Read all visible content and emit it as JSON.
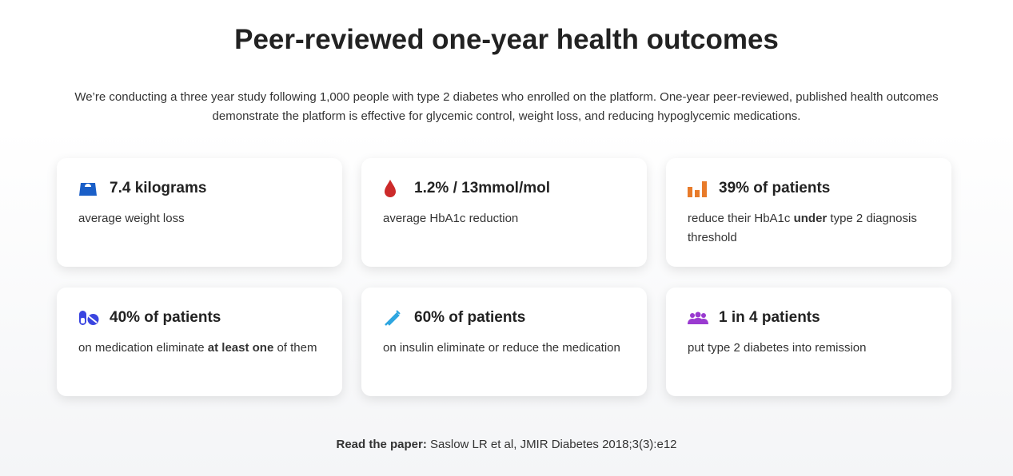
{
  "title": "Peer-reviewed one-year health outcomes",
  "intro": "We’re conducting a three year study following 1,000 people with type 2 diabetes who enrolled on the platform. One-year peer-reviewed, published health outcomes demonstrate the platform is effective for glycemic control, weight loss, and reducing hypoglycemic medications.",
  "cards": [
    {
      "icon": "scale-icon",
      "color": "#1a5fc8",
      "title": "7.4 kilograms",
      "desc": [
        {
          "t": "average weight loss"
        }
      ]
    },
    {
      "icon": "blood-drop-icon",
      "color": "#cc2a2a",
      "title": "1.2% / 13mmol/mol",
      "desc": [
        {
          "t": "average HbA1c reduction"
        }
      ]
    },
    {
      "icon": "bar-chart-icon",
      "color": "#e87b2a",
      "title": "39% of patients",
      "desc": [
        {
          "t": "reduce their HbA1c "
        },
        {
          "t": "under",
          "b": true
        },
        {
          "t": " type 2 diagnosis threshold"
        }
      ]
    },
    {
      "icon": "pills-icon",
      "color": "#3a45e0",
      "title": "40% of patients",
      "desc": [
        {
          "t": "on medication eliminate "
        },
        {
          "t": "at least one",
          "b": true
        },
        {
          "t": " of them"
        }
      ]
    },
    {
      "icon": "syringe-icon",
      "color": "#2ea6e0",
      "title": "60% of patients",
      "desc": [
        {
          "t": "on insulin eliminate or reduce the medication"
        }
      ]
    },
    {
      "icon": "users-icon",
      "color": "#9a3ad0",
      "title": "1 in 4 patients",
      "desc": [
        {
          "t": "put type 2 diabetes into remission"
        }
      ]
    }
  ],
  "footer": {
    "label": "Read the paper:",
    "citation": " Saslow LR et al, JMIR Diabetes 2018;3(3):e12"
  }
}
